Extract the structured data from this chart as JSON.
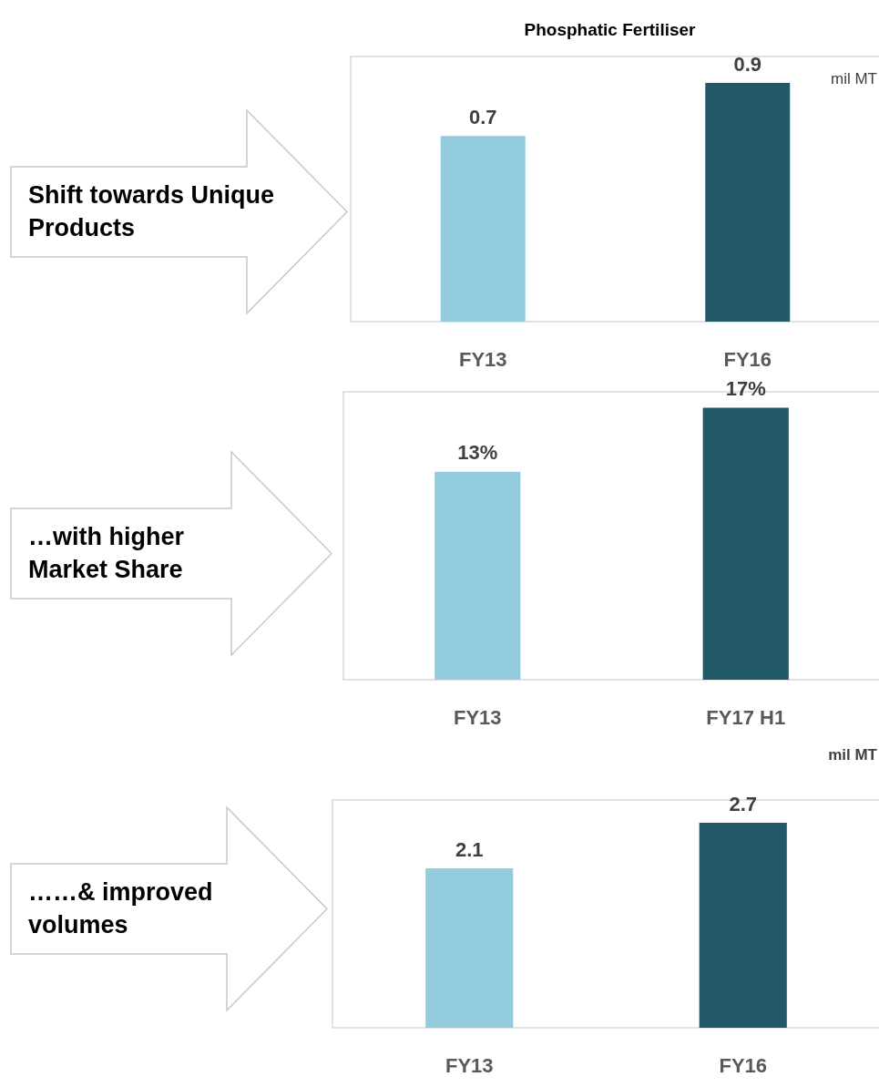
{
  "chart_data": [
    {
      "type": "bar",
      "title": "Phosphatic Fertiliser",
      "categories": [
        "FY13",
        "FY16"
      ],
      "values": [
        0.7,
        0.9
      ],
      "colors": [
        "#93cddd",
        "#215968"
      ],
      "data_labels": true,
      "annotations": [
        "mil MT",
        "Shift towards Unique Products"
      ]
    },
    {
      "type": "bar",
      "categories": [
        "FY13",
        "FY17 H1"
      ],
      "values": [
        13,
        17
      ],
      "value_labels": [
        "13%",
        "17%"
      ],
      "colors": [
        "#93cddd",
        "#215968"
      ],
      "annotations": [
        "…with higher Market Share"
      ]
    },
    {
      "type": "bar",
      "categories": [
        "FY13",
        "FY16"
      ],
      "values": [
        2.1,
        2.7
      ],
      "colors": [
        "#93cddd",
        "#215968"
      ],
      "data_labels": true,
      "annotations": [
        "mil MT",
        "……& improved volumes"
      ]
    }
  ]
}
